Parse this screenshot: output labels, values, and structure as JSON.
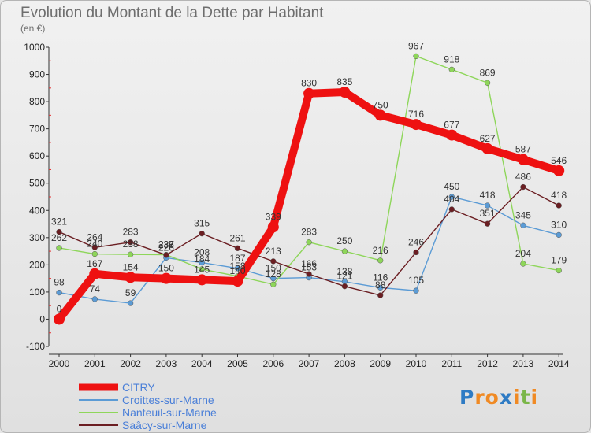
{
  "chart_data": {
    "type": "line",
    "title": "Evolution du Montant de la Dette par Habitant",
    "unit": "(en €)",
    "x": [
      "2000",
      "2001",
      "2002",
      "2003",
      "2004",
      "2005",
      "2006",
      "2007",
      "2008",
      "2009",
      "2010",
      "2011",
      "2012",
      "2013",
      "2014"
    ],
    "ylim": [
      -100,
      1000
    ],
    "yticks": [
      -100,
      0,
      100,
      200,
      300,
      400,
      500,
      600,
      700,
      800,
      900,
      1000
    ],
    "grid": false,
    "legend": "bottom-left",
    "series": [
      {
        "name": "Croittes-sur-Marne",
        "color": "#5b9bd5",
        "values": [
          98,
          74,
          59,
          226,
          208,
          187,
          150,
          153,
          138,
          116,
          105,
          450,
          418,
          345,
          310
        ]
      },
      {
        "name": "Nanteuil-sur-Marne",
        "color": "#8ed65a",
        "values": [
          262,
          240,
          238,
          237,
          184,
          158,
          128,
          283,
          250,
          216,
          967,
          918,
          869,
          204,
          179
        ]
      },
      {
        "name": "Saâcy-sur-Marne",
        "color": "#6b1e22",
        "values": [
          321,
          264,
          283,
          236,
          315,
          261,
          213,
          166,
          121,
          88,
          246,
          404,
          351,
          486,
          418
        ]
      },
      {
        "name": "CITRY",
        "color": "#ee1111",
        "values": [
          0,
          167,
          154,
          150,
          145,
          140,
          339,
          830,
          835,
          750,
          716,
          677,
          627,
          587,
          546
        ]
      }
    ]
  },
  "brand": {
    "letters": [
      "P",
      "r",
      "o",
      "x",
      "i",
      "t",
      "i"
    ],
    "colors": [
      "#2e7bc4",
      "#f08a24",
      "#f08a24",
      "#2e7bc4",
      "#f08a24",
      "#7ab648",
      "#f08a24"
    ]
  }
}
